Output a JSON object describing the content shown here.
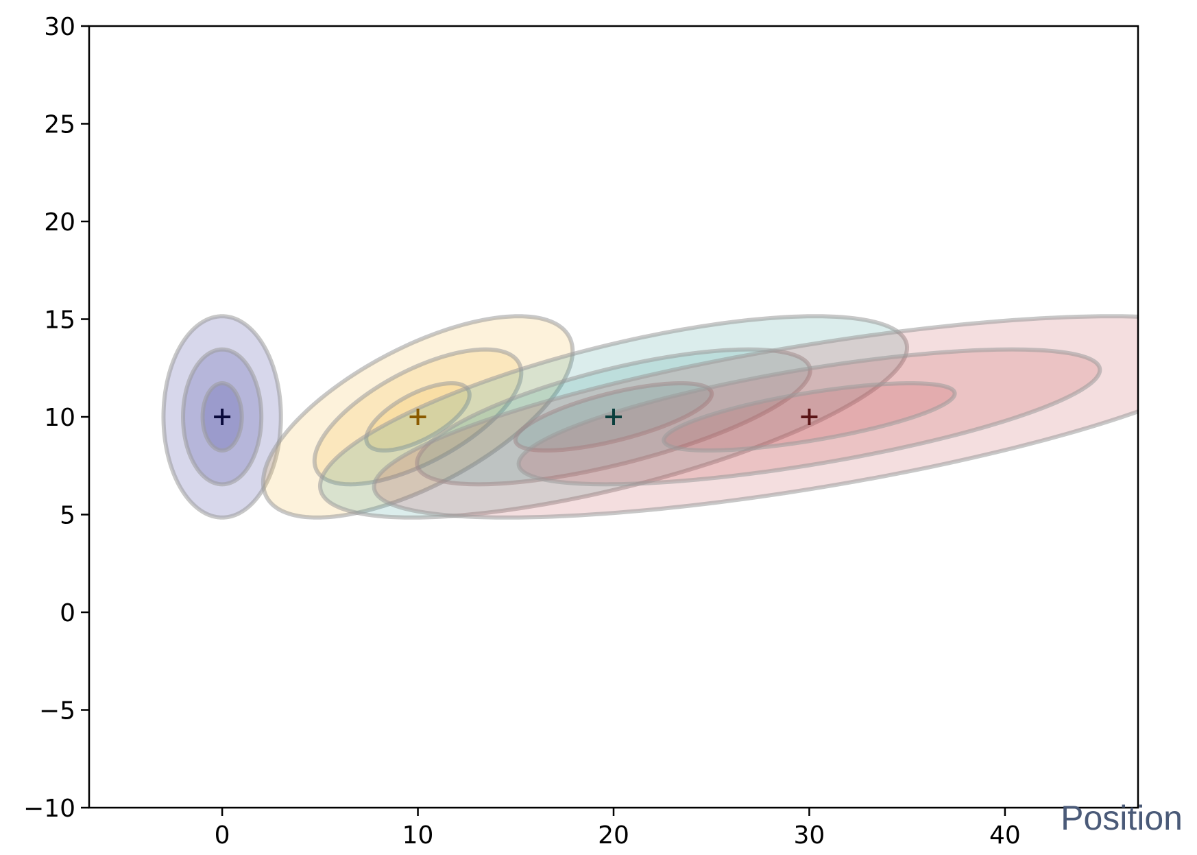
{
  "chart_data": {
    "type": "scatter",
    "title": "",
    "xlabel": "Position",
    "ylabel": "",
    "xlim": [
      -6.8,
      46.8
    ],
    "ylim": [
      -10,
      30
    ],
    "xticks": [
      0,
      10,
      20,
      30,
      40
    ],
    "yticks": [
      -10,
      -5,
      0,
      5,
      10,
      15,
      20,
      25,
      30
    ],
    "xtick_labels": [
      "0",
      "10",
      "20",
      "30",
      "40"
    ],
    "ytick_labels": [
      "−10",
      "−5",
      "0",
      "5",
      "10",
      "15",
      "20",
      "25",
      "30"
    ],
    "grid": false,
    "legend": "none",
    "marker": "+",
    "series": [
      {
        "mean": [
          0,
          10
        ],
        "color": "#1f1f8f",
        "marker_color": "#0a0a3c",
        "ellipses": [
          {
            "rx": 3.0,
            "ry": 5.15,
            "cross_slope": 0
          },
          {
            "rx": 2.0,
            "ry": 3.45,
            "cross_slope": 0
          },
          {
            "rx": 1.0,
            "ry": 1.72,
            "cross_slope": 0
          }
        ]
      },
      {
        "mean": [
          10,
          10
        ],
        "color": "#f5b63a",
        "marker_color": "#8a5a00",
        "ellipses": [
          {
            "rx": 6.0,
            "ry": 5.15,
            "cross_slope": 1.0
          },
          {
            "rx": 4.0,
            "ry": 3.45,
            "cross_slope": 1.0
          },
          {
            "rx": 2.0,
            "ry": 1.72,
            "cross_slope": 1.0
          }
        ]
      },
      {
        "mean": [
          20,
          10
        ],
        "color": "#3a9a96",
        "marker_color": "#0b3f3d",
        "ellipses": [
          {
            "rx": 10.9,
            "ry": 5.15,
            "cross_slope": 2.0
          },
          {
            "rx": 7.3,
            "ry": 3.45,
            "cross_slope": 2.0
          },
          {
            "rx": 3.65,
            "ry": 1.72,
            "cross_slope": 2.0
          }
        ]
      },
      {
        "mean": [
          30,
          10
        ],
        "color": "#c0484f",
        "marker_color": "#5a1416",
        "ellipses": [
          {
            "rx": 16.0,
            "ry": 5.15,
            "cross_slope": 3.0
          },
          {
            "rx": 10.65,
            "ry": 3.45,
            "cross_slope": 3.0
          },
          {
            "rx": 5.35,
            "ry": 1.72,
            "cross_slope": 3.0
          }
        ]
      }
    ]
  }
}
